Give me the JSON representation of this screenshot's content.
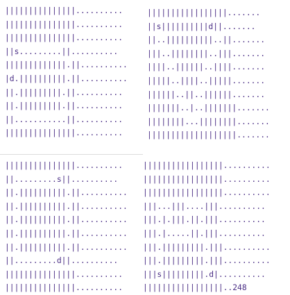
{
  "panels": {
    "top_left": {
      "rows": [
        "|||||||||||||||..........",
        "|||||||||||||||..........",
        "|||||||||||||||..........",
        "||s.........||..........",
        "|||||||||||||.||..........",
        "|d.||||||||||.||..........",
        "||.|||||||||.||..........",
        "||.|||||||||.||..........",
        "||...........||..........",
        "|||||||||||||||.........."
      ]
    },
    "top_right": {
      "rows": [
        "|||||||||||||||||.......",
        "||s||||||||||d||.......",
        "||..||||||||||..||.......",
        "|||..||||||||..|||.......",
        "||||..||||||..||||.......",
        "|||||..||||..|||||.......",
        "||||||..||..||||||.......",
        "|||||||..|..|||||||.......",
        "||||||||...||||||||.......",
        "|||||||||||||||||||......."
      ]
    },
    "bottom_left": {
      "rows": [
        "|||||||||||||||..........",
        "||.........s||..........",
        "||.||||||||||.||..........",
        "||.||||||||||.||..........",
        "||.||||||||||.||..........",
        "||.||||||||||.||..........",
        "||.||||||||||.||..........",
        "||.........d||..........",
        "|||||||||||||||..........",
        "|||||||||||||||.........."
      ]
    },
    "bottom_right": {
      "rows": [
        "|||||||||||||||||..........",
        "|||||||||||||||||..........",
        "|||||||||||||||||..........",
        "|||...|||....|||..........",
        "|||.|.|||.||.|||..........",
        "|||.|.....||.|||..........",
        "|||.|||||||||.|||..........",
        "|||.|||||||||.|||..........",
        "|||s|||||||||.d|..........",
        "|||||||||||||||||..248"
      ]
    }
  }
}
